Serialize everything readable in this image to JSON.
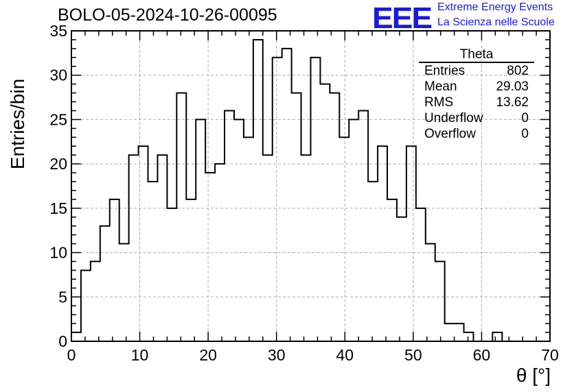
{
  "title": "BOLO-05-2024-10-26-00095",
  "logo": {
    "mark": "EEE",
    "line1": "Extreme Energy Events",
    "line2": "La Scienza nelle Scuole",
    "color": "#1a1adf"
  },
  "stats": {
    "title": "Theta",
    "rows": [
      {
        "key": "Entries",
        "value": "802"
      },
      {
        "key": "Mean",
        "value": "29.03"
      },
      {
        "key": "RMS",
        "value": "13.62"
      },
      {
        "key": "Underflow",
        "value": "0"
      },
      {
        "key": "Overflow",
        "value": "0"
      }
    ]
  },
  "chart_data": {
    "type": "bar",
    "style": "histogram-step",
    "xlabel": "θ [°]",
    "ylabel": "Entries/bin",
    "xlim": [
      0,
      70
    ],
    "ylim": [
      0,
      35
    ],
    "x_ticks": [
      0,
      10,
      20,
      30,
      40,
      50,
      60,
      70
    ],
    "y_ticks": [
      0,
      5,
      10,
      15,
      20,
      25,
      30,
      35
    ],
    "grid": true,
    "bin_width": 1.4,
    "values": [
      1,
      8,
      9,
      13,
      16,
      11,
      21,
      22,
      18,
      21,
      15,
      28,
      16,
      25,
      19,
      20,
      26,
      25,
      23,
      34,
      21,
      32,
      33,
      28,
      21,
      32,
      29,
      28,
      23,
      25,
      26,
      18,
      22,
      16,
      14,
      22,
      15,
      11,
      9,
      2,
      2,
      1,
      0,
      0,
      1,
      0,
      0,
      0,
      0,
      0
    ]
  }
}
